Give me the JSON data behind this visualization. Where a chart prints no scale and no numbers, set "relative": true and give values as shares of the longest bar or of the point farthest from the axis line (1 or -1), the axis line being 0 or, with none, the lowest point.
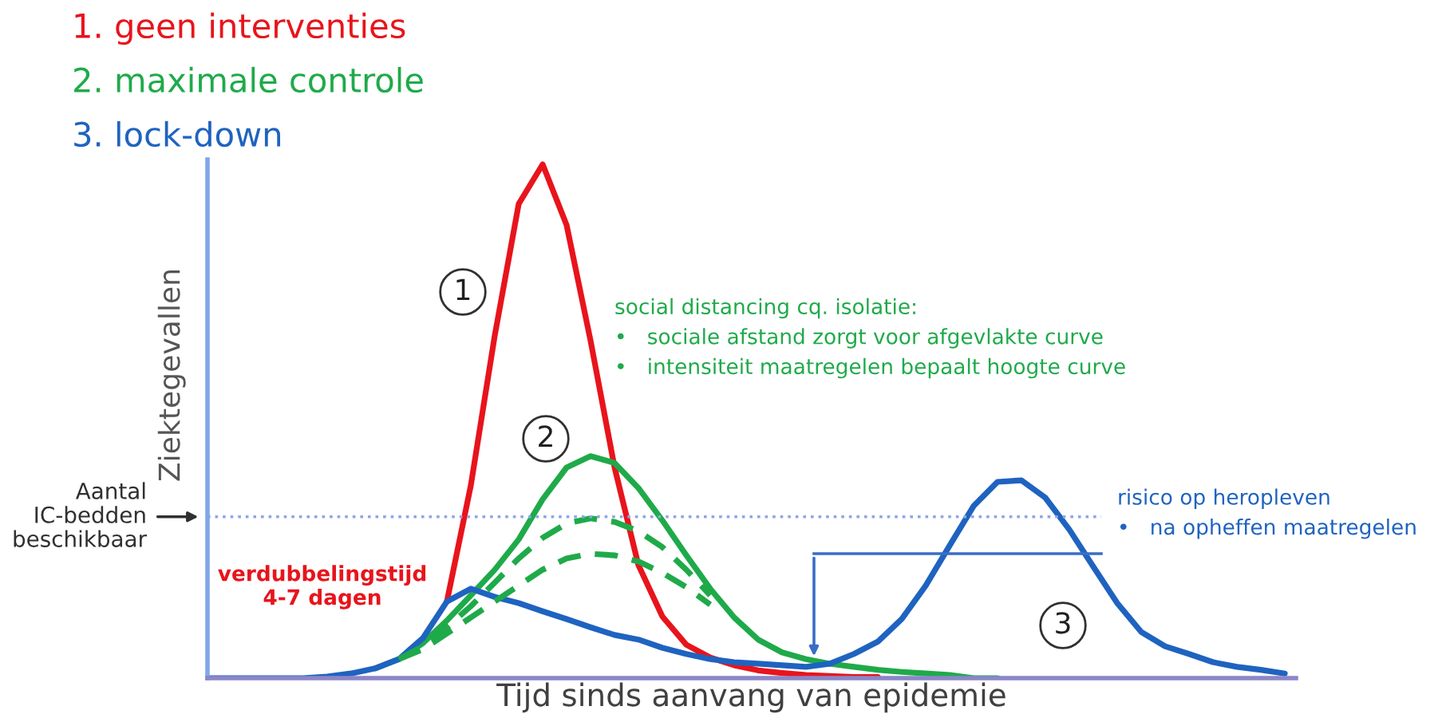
{
  "chart_data": {
    "type": "line",
    "relative": true,
    "xlabel": "Tijd sinds aanvang van epidemie",
    "ylabel": "Ziektegevallen",
    "legend": "top left",
    "categories": [
      null,
      null,
      null,
      null,
      null,
      null,
      null,
      null,
      null,
      null,
      null,
      null,
      null,
      null,
      null,
      null,
      null,
      null,
      null,
      null,
      null,
      null,
      null,
      null,
      null,
      null,
      null,
      null,
      null,
      null,
      null,
      null,
      null,
      null,
      null,
      null,
      null,
      null,
      null,
      null,
      null,
      null,
      null,
      null,
      null,
      null
    ],
    "series": [
      {
        "name": "1. geen interventies",
        "color": "#e8141c",
        "values": [
          null,
          null,
          null,
          null,
          null,
          null,
          null,
          null,
          null,
          null,
          0.149,
          0.375,
          0.667,
          0.923,
          1,
          0.882,
          0.657,
          0.411,
          0.22,
          0.12,
          0.065,
          0.04,
          0.025,
          0.015,
          0.01,
          0.006,
          0.004,
          0.002,
          0.002,
          null,
          null,
          null,
          null,
          null,
          null,
          null,
          null,
          null,
          null,
          null,
          null,
          null,
          null,
          null,
          null,
          null
        ]
      },
      {
        "name": "2. maximale controle",
        "color": "#1faa4a",
        "values": [
          null,
          null,
          null,
          null,
          null,
          null,
          null,
          0.019,
          0.037,
          0.068,
          0.112,
          0.161,
          0.211,
          0.27,
          0.348,
          0.41,
          0.432,
          0.419,
          0.37,
          0.307,
          0.239,
          0.174,
          0.118,
          0.075,
          0.05,
          0.037,
          0.028,
          0.022,
          0.016,
          0.012,
          0.009,
          0.006,
          0,
          0,
          null,
          null,
          null,
          null,
          null,
          null,
          null,
          null,
          null,
          null,
          null,
          null
        ]
      },
      {
        "name": "3. lock-down",
        "color": "#1f63c0",
        "values": [
          0,
          0,
          0,
          0,
          0,
          0.003,
          0.009,
          0.019,
          0.037,
          0.078,
          0.149,
          0.174,
          0.158,
          0.146,
          0.13,
          0.115,
          0.099,
          0.084,
          0.075,
          0.059,
          0.047,
          0.037,
          0.031,
          0.028,
          0.025,
          0.022,
          0.028,
          0.047,
          0.071,
          0.115,
          0.18,
          0.258,
          0.335,
          0.382,
          0.385,
          0.351,
          0.289,
          0.217,
          0.146,
          0.09,
          0.062,
          0.047,
          0.031,
          0.022,
          0.016,
          0.009
        ]
      },
      {
        "color": "#1faa4a",
        "line_style": "dashed",
        "values": [
          null,
          null,
          null,
          null,
          null,
          null,
          null,
          null,
          0.037,
          0.062,
          0.099,
          0.14,
          0.186,
          0.233,
          0.273,
          0.301,
          0.311,
          0.304,
          0.286,
          0.255,
          0.211,
          0.161,
          null,
          null,
          null,
          null,
          null,
          null,
          null,
          null,
          null,
          null,
          null,
          null,
          null,
          null,
          null,
          null,
          null,
          null,
          null,
          null,
          null,
          null,
          null,
          null
        ]
      },
      {
        "color": "#1faa4a",
        "line_style": "dashed",
        "values": [
          null,
          null,
          null,
          null,
          null,
          null,
          null,
          null,
          0.037,
          0.056,
          0.087,
          0.118,
          0.149,
          0.18,
          0.211,
          0.233,
          0.242,
          0.239,
          0.227,
          0.205,
          0.177,
          0.143,
          null,
          null,
          null,
          null,
          null,
          null,
          null,
          null,
          null,
          null,
          null,
          null,
          null,
          null,
          null,
          null,
          null,
          null,
          null,
          null,
          null,
          null,
          null,
          null
        ]
      }
    ],
    "ref_lines": [
      {
        "axis": "y",
        "value": 0.314,
        "label": "Aantal\nIC-bedden\nbeschikbaar",
        "color": "#8ea6e6",
        "line_style": "dotted"
      }
    ],
    "annotations": [
      "1",
      "2",
      "3",
      "social distancing cq. isolatie:\n•   sociale afstand zorgt voor afgevlakte curve\n•   intensiteit maatregelen bepaalt hoogte curve",
      "verdubbelingstijd\n4-7 dagen",
      "risico op heropleven\n•   na opheffen maatregelen"
    ]
  }
}
